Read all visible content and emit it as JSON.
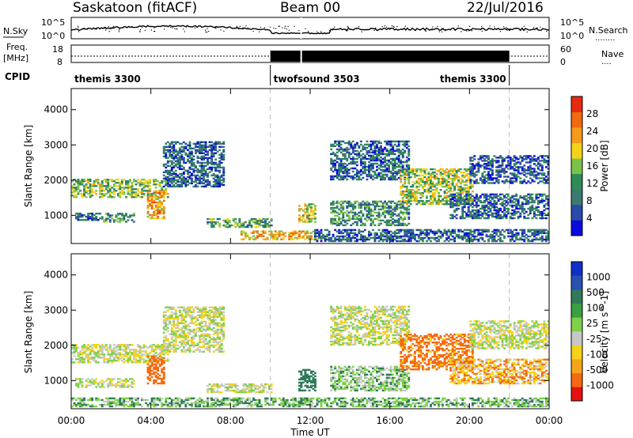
{
  "header": {
    "station": "Saskatoon (fitACF)",
    "beam": "Beam 00",
    "date": "22/Jul/2016"
  },
  "panel_labels": {
    "nsky": "N.Sky",
    "nsearch": "N.Search",
    "nsearch_dots": "........",
    "freq": "Freq.",
    "freq_unit": "[MHz]",
    "nave": "Nave",
    "nave_dots": "....",
    "cpid": "CPID"
  },
  "noise_axis": {
    "left_top": "10^5",
    "left_bottom": "10^0",
    "right_top": "10^5",
    "right_bottom": "10^0"
  },
  "freq_axis": {
    "left_top": "18",
    "left_bottom": "8",
    "right_top": "60",
    "right_bottom": "0"
  },
  "cpid_segments": [
    {
      "label": "themis 3300",
      "start_h": 0,
      "end_h": 10
    },
    {
      "label": "twofsound 3503",
      "start_h": 10,
      "end_h": 22
    },
    {
      "label": "themis 3300",
      "start_h": 22,
      "end_h": 24
    }
  ],
  "colors": {
    "power_scale": [
      "#0a0adf",
      "#2a4aa8",
      "#3b7a6e",
      "#2e8b57",
      "#7cc24a",
      "#f5d21a",
      "#f59a1a",
      "#f06a10",
      "#e62a10"
    ],
    "velocity_scale": [
      "#1030c8",
      "#2a50b0",
      "#2f7a5a",
      "#3aa040",
      "#7ed04a",
      "#c8c8c8",
      "#f5d21a",
      "#f5a51a",
      "#f56a10",
      "#e61010"
    ],
    "ground_scatter": "#bebebe"
  },
  "chart_data": [
    {
      "type": "heatmap",
      "title": "Saskatoon (fitACF) Beam 00",
      "quantity": "Power",
      "colorbar_label": "Power [dB]",
      "colorbar_ticks": [
        "4",
        "8",
        "12",
        "16",
        "20",
        "24",
        "28"
      ],
      "colorbar_range": [
        0,
        30
      ],
      "xlabel": "Time UT",
      "ylabel": "Slant Range [km]",
      "x_ticks": [
        "00:00",
        "04:00",
        "08:00",
        "12:00",
        "16:00",
        "20:00",
        "00:00"
      ],
      "y_ticks": [
        "1000",
        "2000",
        "3000",
        "4000"
      ],
      "xlim_hours": [
        0,
        24
      ],
      "ylim_km": [
        200,
        4600
      ],
      "regions": [
        {
          "t0": 0.0,
          "t1": 4.8,
          "r0": 1500,
          "r1": 2000,
          "level": 14
        },
        {
          "t0": 3.8,
          "t1": 4.6,
          "r0": 900,
          "r1": 1700,
          "level": 22
        },
        {
          "t0": 0.2,
          "t1": 1.5,
          "r0": 850,
          "r1": 1050,
          "level": 6
        },
        {
          "t0": 1.5,
          "t1": 3.2,
          "r0": 800,
          "r1": 1050,
          "level": 10
        },
        {
          "t0": 4.6,
          "t1": 7.6,
          "r0": 1800,
          "r1": 3100,
          "level": 6
        },
        {
          "t0": 6.8,
          "t1": 10.0,
          "r0": 650,
          "r1": 900,
          "level": 12
        },
        {
          "t0": 8.5,
          "t1": 12.5,
          "r0": 300,
          "r1": 550,
          "level": 20
        },
        {
          "t0": 11.4,
          "t1": 12.2,
          "r0": 800,
          "r1": 1300,
          "level": 18
        },
        {
          "t0": 12.2,
          "t1": 24.0,
          "r0": 250,
          "r1": 600,
          "level": 6
        },
        {
          "t0": 13.0,
          "t1": 17.0,
          "r0": 700,
          "r1": 1400,
          "level": 10
        },
        {
          "t0": 13.0,
          "t1": 17.0,
          "r0": 2000,
          "r1": 3100,
          "level": 6
        },
        {
          "t0": 16.5,
          "t1": 20.2,
          "r0": 1300,
          "r1": 2300,
          "level": 16
        },
        {
          "t0": 19.0,
          "t1": 24.0,
          "r0": 900,
          "r1": 1600,
          "level": 6
        },
        {
          "t0": 20.0,
          "t1": 24.0,
          "r0": 1900,
          "r1": 2700,
          "level": 5
        }
      ],
      "guide_lines_hours": [
        10,
        22
      ]
    },
    {
      "type": "heatmap",
      "quantity": "Velocity",
      "colorbar_label": "Velocity [m s^-1]",
      "colorbar_ticks": [
        "1000",
        "500",
        "100",
        "25",
        "-25",
        "-100",
        "-500",
        "-1000"
      ],
      "xlabel": "Time UT",
      "ylabel": "Slant Range [km]",
      "x_ticks": [
        "00:00",
        "04:00",
        "08:00",
        "12:00",
        "16:00",
        "20:00",
        "00:00"
      ],
      "y_ticks": [
        "1000",
        "2000",
        "3000",
        "4000"
      ],
      "xlim_hours": [
        0,
        24
      ],
      "ylim_km": [
        200,
        4600
      ],
      "regions": [
        {
          "t0": 0.0,
          "t1": 4.8,
          "r0": 1500,
          "r1": 2000,
          "vel": 0
        },
        {
          "t0": 3.8,
          "t1": 4.6,
          "r0": 900,
          "r1": 1700,
          "vel": -300
        },
        {
          "t0": 0.2,
          "t1": 3.2,
          "r0": 800,
          "r1": 1050,
          "vel": 0
        },
        {
          "t0": 4.6,
          "t1": 7.6,
          "r0": 1800,
          "r1": 3100,
          "vel": 0
        },
        {
          "t0": 6.8,
          "t1": 10.0,
          "r0": 650,
          "r1": 900,
          "vel": 0
        },
        {
          "t0": 0.0,
          "t1": 24.0,
          "r0": 250,
          "r1": 500,
          "vel": 80
        },
        {
          "t0": 11.4,
          "t1": 12.2,
          "r0": 700,
          "r1": 1300,
          "vel": 300
        },
        {
          "t0": 13.0,
          "t1": 17.0,
          "r0": 700,
          "r1": 1400,
          "vel": 60
        },
        {
          "t0": 13.0,
          "t1": 17.0,
          "r0": 2000,
          "r1": 3100,
          "vel": 0
        },
        {
          "t0": 16.5,
          "t1": 20.2,
          "r0": 1300,
          "r1": 2300,
          "vel": -150
        },
        {
          "t0": 19.0,
          "t1": 24.0,
          "r0": 900,
          "r1": 1600,
          "vel": -80
        },
        {
          "t0": 20.0,
          "t1": 24.0,
          "r0": 1900,
          "r1": 2700,
          "vel": 0
        }
      ],
      "guide_lines_hours": [
        10,
        22
      ]
    }
  ]
}
